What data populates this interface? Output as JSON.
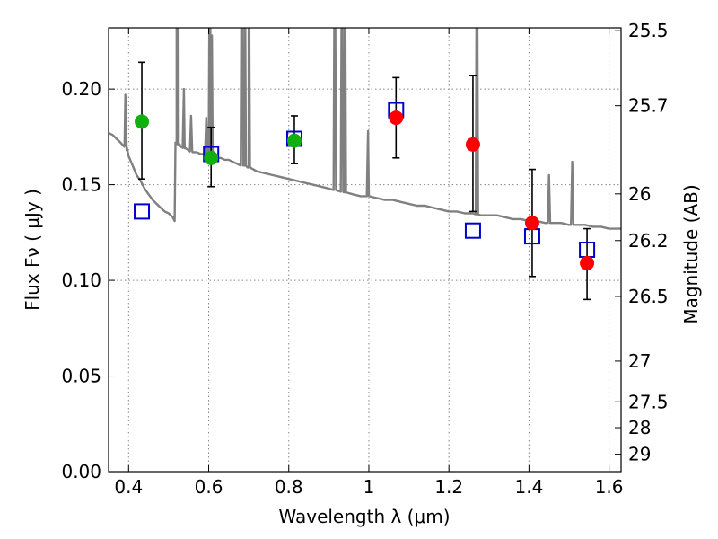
{
  "chart_data": {
    "type": "scatter",
    "xlabel": "Wavelength  λ (μm)",
    "ylabel": "Flux  Fν  ( μJy )",
    "ylabel_right": "Magnitude (AB)",
    "xlim": [
      0.35,
      1.63
    ],
    "ylim": [
      0.0,
      0.232
    ],
    "grid": true,
    "x_ticks": [
      0.4,
      0.6,
      0.8,
      1.0,
      1.2,
      1.4,
      1.6
    ],
    "x_tick_labels": [
      "0.4",
      "0.6",
      "0.8",
      "1",
      "1.2",
      "1.4",
      "1.6"
    ],
    "y_ticks": [
      0.0,
      0.05,
      0.1,
      0.15,
      0.2
    ],
    "y_tick_labels": [
      "0.00",
      "0.05",
      "0.10",
      "0.15",
      "0.20"
    ],
    "right_ticks": [
      {
        "label": "25.5",
        "flux": 0.2305
      },
      {
        "label": "25.7",
        "flux": 0.1913
      },
      {
        "label": "26",
        "flux": 0.1452
      },
      {
        "label": "26.2",
        "flux": 0.1208
      },
      {
        "label": "26.5",
        "flux": 0.0916
      },
      {
        "label": "27",
        "flux": 0.0578
      },
      {
        "label": "27.5",
        "flux": 0.0365
      },
      {
        "label": "28",
        "flux": 0.023
      },
      {
        "label": "29",
        "flux": 0.0091
      }
    ],
    "observed_green": [
      {
        "x": 0.433,
        "y": 0.183,
        "err_low": 0.153,
        "err_high": 0.214
      },
      {
        "x": 0.606,
        "y": 0.164,
        "err_low": 0.149,
        "err_high": 0.18
      },
      {
        "x": 0.814,
        "y": 0.173,
        "err_low": 0.161,
        "err_high": 0.186
      }
    ],
    "observed_red": [
      {
        "x": 1.068,
        "y": 0.185,
        "err_low": 0.164,
        "err_high": 0.206
      },
      {
        "x": 1.26,
        "y": 0.171,
        "err_low": 0.136,
        "err_high": 0.207
      },
      {
        "x": 1.408,
        "y": 0.13,
        "err_low": 0.102,
        "err_high": 0.158
      },
      {
        "x": 1.545,
        "y": 0.109,
        "err_low": 0.09,
        "err_high": 0.127
      }
    ],
    "model_squares": [
      {
        "x": 0.433,
        "y": 0.136
      },
      {
        "x": 0.606,
        "y": 0.166
      },
      {
        "x": 0.814,
        "y": 0.174
      },
      {
        "x": 1.068,
        "y": 0.189
      },
      {
        "x": 1.26,
        "y": 0.126
      },
      {
        "x": 1.408,
        "y": 0.123
      },
      {
        "x": 1.545,
        "y": 0.116
      }
    ],
    "spectrum": {
      "x": [
        0.35,
        0.36,
        0.37,
        0.38,
        0.39,
        0.395,
        0.4,
        0.41,
        0.42,
        0.43,
        0.44,
        0.45,
        0.46,
        0.47,
        0.48,
        0.49,
        0.5,
        0.51,
        0.515,
        0.52,
        0.525,
        0.53,
        0.54,
        0.55,
        0.56,
        0.57,
        0.58,
        0.59,
        0.6,
        0.61,
        0.62,
        0.63,
        0.64,
        0.65,
        0.66,
        0.67,
        0.68,
        0.69,
        0.7,
        0.72,
        0.74,
        0.76,
        0.78,
        0.8,
        0.82,
        0.84,
        0.86,
        0.88,
        0.9,
        0.92,
        0.94,
        0.96,
        0.98,
        1.0,
        1.02,
        1.04,
        1.06,
        1.08,
        1.1,
        1.12,
        1.14,
        1.16,
        1.18,
        1.2,
        1.22,
        1.24,
        1.26,
        1.28,
        1.3,
        1.32,
        1.34,
        1.36,
        1.38,
        1.4,
        1.42,
        1.44,
        1.46,
        1.48,
        1.5,
        1.52,
        1.54,
        1.56,
        1.58,
        1.6,
        1.63
      ],
      "y": [
        0.177,
        0.176,
        0.174,
        0.172,
        0.171,
        0.168,
        0.165,
        0.16,
        0.155,
        0.152,
        0.148,
        0.145,
        0.142,
        0.14,
        0.138,
        0.136,
        0.135,
        0.133,
        0.131,
        0.172,
        0.171,
        0.17,
        0.169,
        0.168,
        0.167,
        0.167,
        0.166,
        0.166,
        0.165,
        0.165,
        0.164,
        0.164,
        0.163,
        0.163,
        0.162,
        0.161,
        0.16,
        0.16,
        0.159,
        0.157,
        0.156,
        0.155,
        0.154,
        0.153,
        0.152,
        0.151,
        0.15,
        0.149,
        0.148,
        0.147,
        0.146,
        0.145,
        0.144,
        0.144,
        0.143,
        0.142,
        0.142,
        0.141,
        0.14,
        0.139,
        0.139,
        0.138,
        0.137,
        0.136,
        0.136,
        0.135,
        0.135,
        0.134,
        0.134,
        0.134,
        0.133,
        0.132,
        0.132,
        0.131,
        0.131,
        0.13,
        0.13,
        0.13,
        0.129,
        0.129,
        0.129,
        0.128,
        0.128,
        0.127,
        0.127
      ]
    },
    "emission_lines": [
      {
        "x": 0.392,
        "peak": 0.197
      },
      {
        "x": 0.52,
        "peak": 0.3
      },
      {
        "x": 0.524,
        "peak": 0.3
      },
      {
        "x": 0.538,
        "peak": 0.2
      },
      {
        "x": 0.556,
        "peak": 0.186
      },
      {
        "x": 0.594,
        "peak": 0.185
      },
      {
        "x": 0.603,
        "peak": 0.3
      },
      {
        "x": 0.608,
        "peak": 0.228
      },
      {
        "x": 0.683,
        "peak": 0.3
      },
      {
        "x": 0.69,
        "peak": 0.3
      },
      {
        "x": 0.7,
        "peak": 0.3
      },
      {
        "x": 0.915,
        "peak": 0.3
      },
      {
        "x": 0.933,
        "peak": 0.3
      },
      {
        "x": 0.94,
        "peak": 0.3
      },
      {
        "x": 0.998,
        "peak": 0.178
      },
      {
        "x": 1.27,
        "peak": 0.3
      },
      {
        "x": 1.45,
        "peak": 0.155
      },
      {
        "x": 1.508,
        "peak": 0.162
      }
    ],
    "colors": {
      "green": "#10b010",
      "red": "#ff0000",
      "square": "#0000cc",
      "spectrum": "#808080",
      "error_bar": "#000000",
      "grid": "#888888"
    }
  }
}
